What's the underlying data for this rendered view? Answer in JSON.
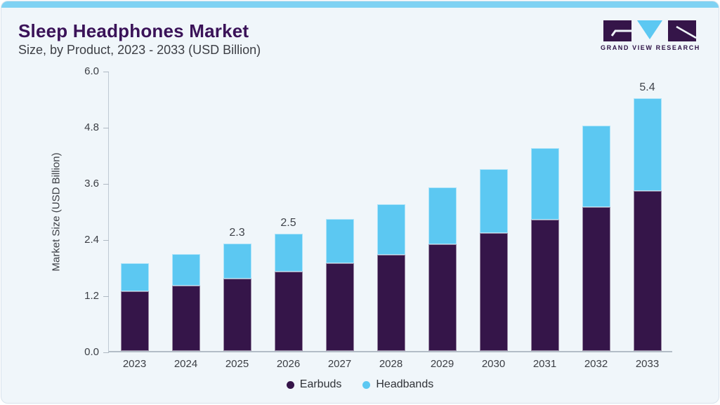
{
  "header": {
    "title": "Sleep Headphones Market",
    "subtitle": "Size, by Product, 2023 - 2033 (USD Billion)",
    "logo_text": "GRAND VIEW RESEARCH"
  },
  "colors": {
    "accent_bar": "#7fd2f3",
    "card_background": "#f0f6fa",
    "title_text": "#3a1258",
    "earbuds": "#351549",
    "headbands": "#5cc8f2"
  },
  "chart_data": {
    "type": "bar",
    "stacked": true,
    "title": "Sleep Headphones Market Size, by Product, 2023 - 2033 (USD Billion)",
    "categories": [
      "2023",
      "2024",
      "2025",
      "2026",
      "2027",
      "2028",
      "2029",
      "2030",
      "2031",
      "2032",
      "2033"
    ],
    "series": [
      {
        "name": "Earbuds",
        "color": "#351549",
        "values": [
          1.28,
          1.4,
          1.54,
          1.7,
          1.88,
          2.06,
          2.28,
          2.52,
          2.8,
          3.08,
          3.42
        ]
      },
      {
        "name": "Headbands",
        "color": "#5cc8f2",
        "values": [
          0.6,
          0.67,
          0.76,
          0.8,
          0.94,
          1.08,
          1.21,
          1.36,
          1.53,
          1.74,
          1.98
        ]
      }
    ],
    "totals": [
      1.88,
      2.07,
      2.3,
      2.5,
      2.82,
      3.14,
      3.49,
      3.88,
      4.33,
      4.82,
      5.4
    ],
    "total_labels": {
      "2025": "2.3",
      "2026": "2.5",
      "2033": "5.4"
    },
    "xlabel": "",
    "ylabel": "Market Size (USD Billion)",
    "ylim": [
      0,
      6.0
    ],
    "y_ticks": [
      "0.0",
      "1.2",
      "2.4",
      "3.6",
      "4.8",
      "6.0"
    ],
    "grid": false,
    "legend_position": "bottom"
  }
}
